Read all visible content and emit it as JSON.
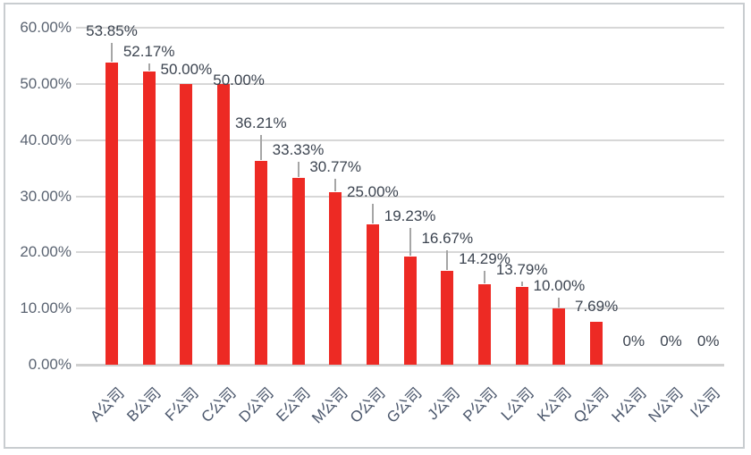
{
  "chart_data": {
    "type": "bar",
    "title": "",
    "legend_position": "none",
    "grid": true,
    "ylim": [
      0,
      60
    ],
    "y_ticks": [
      "0.00%",
      "10.00%",
      "20.00%",
      "30.00%",
      "40.00%",
      "50.00%",
      "60.00%"
    ],
    "y_tick_values": [
      0,
      10,
      20,
      30,
      40,
      50,
      60
    ],
    "categories": [
      "A公司",
      "B公司",
      "F公司",
      "C公司",
      "D公司",
      "E公司",
      "M公司",
      "O公司",
      "G公司",
      "J公司",
      "P公司",
      "L公司",
      "K公司",
      "Q公司",
      "H公司",
      "N公司",
      "I公司"
    ],
    "values": [
      53.85,
      52.17,
      50.0,
      50.0,
      36.21,
      33.33,
      30.77,
      25.0,
      19.23,
      16.67,
      14.29,
      13.79,
      10.0,
      7.69,
      0,
      0,
      0
    ],
    "data_labels": [
      "53.85%",
      "52.17%",
      "50.00%",
      "50.00%",
      "36.21%",
      "33.33%",
      "30.77%",
      "25.00%",
      "19.23%",
      "16.67%",
      "14.29%",
      "13.79%",
      "10.00%",
      "7.69%",
      "0%",
      "0%",
      "0%"
    ],
    "colors": {
      "bar": "#ed2a24",
      "gridline": "#d7d7d7",
      "axis_line": "#d0d0d0",
      "leader_line": "#a6a6a6",
      "y_tick_label": "#5b6472",
      "x_category_label": "#4a566b",
      "data_label": "#3c4450",
      "frame_border": "#c9cdd0",
      "background": "#ffffff"
    }
  }
}
